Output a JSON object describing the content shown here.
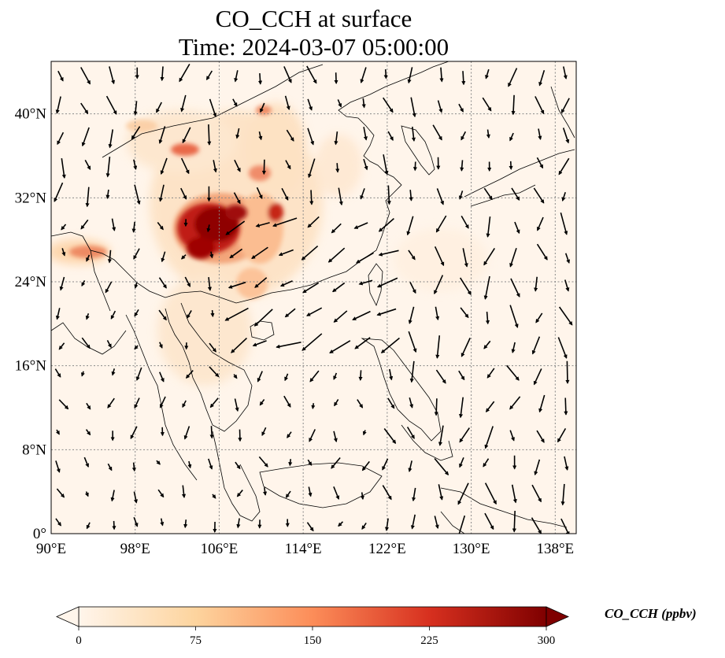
{
  "map": {
    "title_line1": "CO_CCH at surface",
    "title_line2": "Time: 2024-03-07 05:00:00",
    "lon_labels": [
      "90°E",
      "98°E",
      "106°E",
      "114°E",
      "122°E",
      "130°E",
      "138°E"
    ],
    "lat_labels": [
      "0°",
      "8°N",
      "16°N",
      "24°N",
      "32°N",
      "40°N"
    ],
    "lon_range": [
      90,
      140
    ],
    "lat_range": [
      0,
      45
    ],
    "background_color": "#fff5eb",
    "grid": "dotted"
  },
  "colorbar": {
    "label": "CO_CCH (ppbv)",
    "ticks": [
      "0",
      "75",
      "150",
      "225",
      "300"
    ],
    "range": [
      0,
      300
    ],
    "colormap": "OrRd",
    "extend": "both"
  }
}
